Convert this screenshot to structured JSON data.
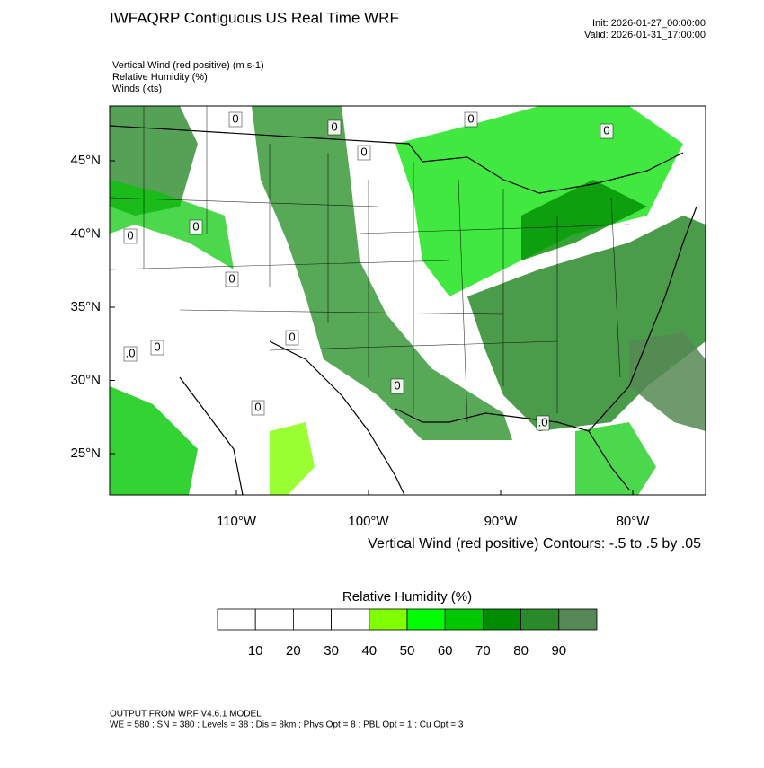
{
  "header": {
    "title": "IWFAQRP Contiguous US Real Time WRF",
    "init": "Init: 2026-01-27_00:00:00",
    "valid": "Valid: 2026-01-31_17:00:00",
    "fields": [
      "Vertical Wind (red positive)   (m s-1)",
      "Relative Humidity   (%)",
      "Winds   (kts)"
    ]
  },
  "map": {
    "lon_ticks": [
      {
        "value": -110,
        "label": "110°W"
      },
      {
        "value": -100,
        "label": "100°W"
      },
      {
        "value": -90,
        "label": "90°W"
      },
      {
        "value": -80,
        "label": "80°W"
      }
    ],
    "lat_ticks": [
      {
        "value": 45,
        "label": "45°N"
      },
      {
        "value": 40,
        "label": "40°N"
      },
      {
        "value": 35,
        "label": "35°N"
      },
      {
        "value": 30,
        "label": "30°N"
      },
      {
        "value": 25,
        "label": "25°N"
      }
    ],
    "contour_labels": [
      "0",
      "0",
      "0",
      "0",
      "0",
      "0",
      "0",
      "0",
      "0",
      "0",
      "0",
      "0",
      ".0",
      ".0"
    ],
    "contour_caption": "Vertical Wind (red positive) Contours: -.5 to .5 by .05"
  },
  "colorbar": {
    "title": "Relative Humidity  (%)",
    "levels": [
      10,
      20,
      30,
      40,
      50,
      60,
      70,
      80,
      90
    ],
    "colors": [
      "#ffffff",
      "#ffffff",
      "#ffffff",
      "#ffffff",
      "#80ff00",
      "#00ff00",
      "#00c800",
      "#008c00",
      "#2a8a2a",
      "#558855"
    ]
  },
  "footer": {
    "model": "OUTPUT FROM WRF V4.6.1 MODEL",
    "settings": "WE = 580 ; SN = 380 ; Levels = 38 ; Dis = 8km ; Phys Opt = 8 ; PBL Opt = 1 ; Cu Opt = 3"
  }
}
